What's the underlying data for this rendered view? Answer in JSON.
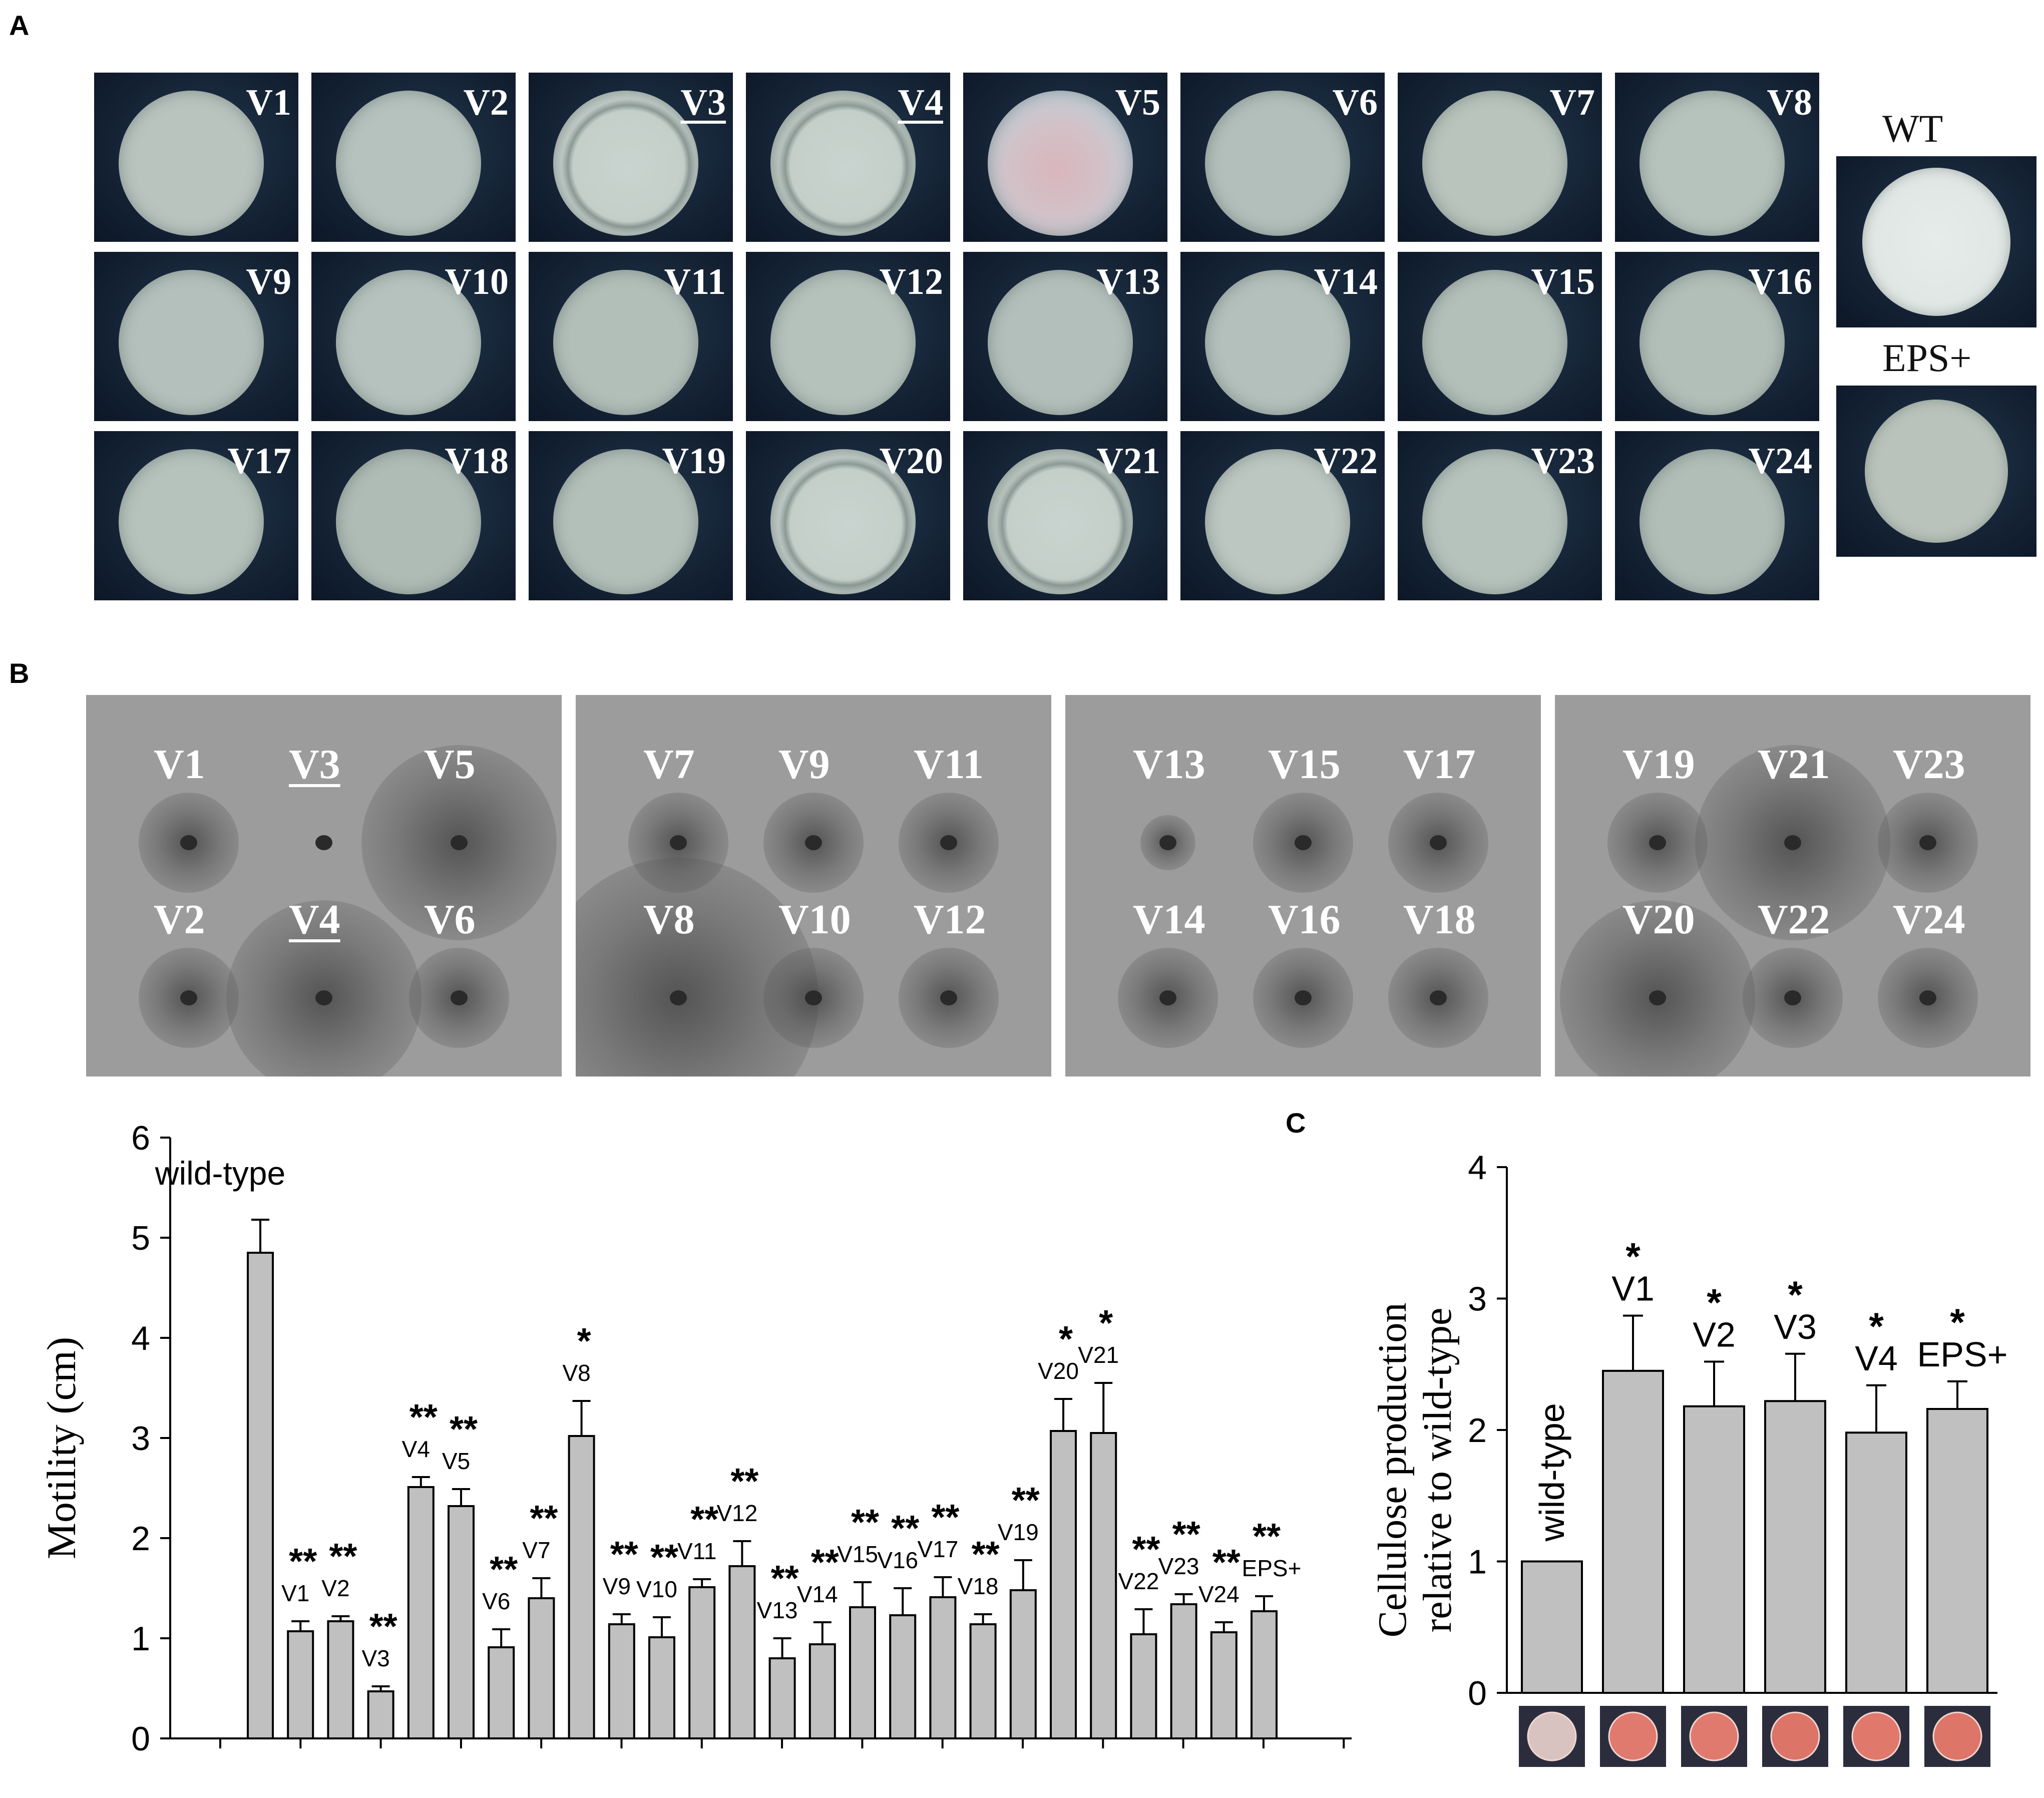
{
  "panel_letters": {
    "a": "A",
    "b": "B",
    "c": "C"
  },
  "panel_a": {
    "tiles": [
      {
        "label": "V1",
        "underline": false,
        "color": "#b9c4bf",
        "ring": "none"
      },
      {
        "label": "V2",
        "underline": false,
        "color": "#b5c2bd",
        "ring": "none"
      },
      {
        "label": "V3",
        "underline": true,
        "color": "#c3cec9",
        "ring": "wide"
      },
      {
        "label": "V4",
        "underline": true,
        "color": "#bdc8c2",
        "ring": "wide"
      },
      {
        "label": "V5",
        "underline": false,
        "color": "#d4c8cf",
        "ring": "pink"
      },
      {
        "label": "V6",
        "underline": false,
        "color": "#b3bfba",
        "ring": "none"
      },
      {
        "label": "V7",
        "underline": false,
        "color": "#b8c4bc",
        "ring": "none"
      },
      {
        "label": "V8",
        "underline": false,
        "color": "#b6c2bc",
        "ring": "none"
      },
      {
        "label": "V9",
        "underline": false,
        "color": "#b4c0bb",
        "ring": "none"
      },
      {
        "label": "V10",
        "underline": false,
        "color": "#b6c2bd",
        "ring": "none"
      },
      {
        "label": "V11",
        "underline": false,
        "color": "#b2beb8",
        "ring": "none"
      },
      {
        "label": "V12",
        "underline": false,
        "color": "#b5c1bb",
        "ring": "none"
      },
      {
        "label": "V13",
        "underline": false,
        "color": "#b3bfba",
        "ring": "none"
      },
      {
        "label": "V14",
        "underline": false,
        "color": "#b4c0bb",
        "ring": "none"
      },
      {
        "label": "V15",
        "underline": false,
        "color": "#b3bfb9",
        "ring": "none"
      },
      {
        "label": "V16",
        "underline": false,
        "color": "#b2beb8",
        "ring": "none"
      },
      {
        "label": "V17",
        "underline": false,
        "color": "#b6c2bc",
        "ring": "none"
      },
      {
        "label": "V18",
        "underline": false,
        "color": "#afbbb5",
        "ring": "none"
      },
      {
        "label": "V19",
        "underline": false,
        "color": "#b3bfb9",
        "ring": "none"
      },
      {
        "label": "V20",
        "underline": false,
        "color": "#c2cdc8",
        "ring": "wide"
      },
      {
        "label": "V21",
        "underline": false,
        "color": "#bcc7c1",
        "ring": "wide"
      },
      {
        "label": "V22",
        "underline": false,
        "color": "#bcc7c1",
        "ring": "none"
      },
      {
        "label": "V23",
        "underline": false,
        "color": "#b6c2bc",
        "ring": "none"
      },
      {
        "label": "V24",
        "underline": false,
        "color": "#b1bdb7",
        "ring": "none"
      }
    ],
    "side": [
      {
        "label": "WT",
        "color": "#dfe6e3"
      },
      {
        "label": "EPS+",
        "color": "#b9c3bb"
      }
    ]
  },
  "panel_b_plates": [
    {
      "spots": [
        {
          "label": "V1",
          "underline": false,
          "halo": "small"
        },
        {
          "label": "V3",
          "underline": true,
          "halo": "none"
        },
        {
          "label": "V5",
          "underline": false,
          "halo": "large"
        },
        {
          "label": "V2",
          "underline": false,
          "halo": "small"
        },
        {
          "label": "V4",
          "underline": true,
          "halo": "large"
        },
        {
          "label": "V6",
          "underline": false,
          "halo": "small"
        }
      ]
    },
    {
      "spots": [
        {
          "label": "V7",
          "underline": false,
          "halo": "small"
        },
        {
          "label": "V9",
          "underline": false,
          "halo": "small"
        },
        {
          "label": "V11",
          "underline": false,
          "halo": "small"
        },
        {
          "label": "V8",
          "underline": false,
          "halo": "huge"
        },
        {
          "label": "V10",
          "underline": false,
          "halo": "small"
        },
        {
          "label": "V12",
          "underline": false,
          "halo": "small"
        }
      ]
    },
    {
      "spots": [
        {
          "label": "V13",
          "underline": false,
          "halo": "tiny"
        },
        {
          "label": "V15",
          "underline": false,
          "halo": "small"
        },
        {
          "label": "V17",
          "underline": false,
          "halo": "small"
        },
        {
          "label": "V14",
          "underline": false,
          "halo": "small"
        },
        {
          "label": "V16",
          "underline": false,
          "halo": "small"
        },
        {
          "label": "V18",
          "underline": false,
          "halo": "small"
        }
      ]
    },
    {
      "spots": [
        {
          "label": "V19",
          "underline": false,
          "halo": "small"
        },
        {
          "label": "V21",
          "underline": false,
          "halo": "large"
        },
        {
          "label": "V23",
          "underline": false,
          "halo": "small"
        },
        {
          "label": "V20",
          "underline": false,
          "halo": "large"
        },
        {
          "label": "V22",
          "underline": false,
          "halo": "small"
        },
        {
          "label": "V24",
          "underline": false,
          "halo": "small"
        }
      ]
    }
  ],
  "chart_data": [
    {
      "type": "bar",
      "title": "",
      "xlabel": "",
      "ylabel": "Motility (cm)",
      "ylim": [
        0,
        6
      ],
      "yticks": [
        0,
        1,
        2,
        3,
        4,
        5,
        6
      ],
      "grid": false,
      "categories": [
        "wild-type",
        "V1",
        "V2",
        "V3",
        "V4",
        "V5",
        "V6",
        "V7",
        "V8",
        "V9",
        "V10",
        "V11",
        "V12",
        "V13",
        "V14",
        "V15",
        "V16",
        "V17",
        "V18",
        "V19",
        "V20",
        "V21",
        "V22",
        "V23",
        "V24",
        "EPS+"
      ],
      "values": [
        4.85,
        1.07,
        1.17,
        0.47,
        2.51,
        2.32,
        0.91,
        1.4,
        3.02,
        1.14,
        1.01,
        1.51,
        1.72,
        0.8,
        0.94,
        1.31,
        1.23,
        1.41,
        1.14,
        1.48,
        3.07,
        3.05,
        1.04,
        1.34,
        1.06,
        1.27
      ],
      "errors": [
        0.33,
        0.1,
        0.05,
        0.05,
        0.1,
        0.17,
        0.18,
        0.2,
        0.35,
        0.1,
        0.2,
        0.08,
        0.25,
        0.2,
        0.22,
        0.25,
        0.27,
        0.2,
        0.1,
        0.3,
        0.32,
        0.5,
        0.25,
        0.1,
        0.1,
        0.15
      ],
      "significance": [
        "",
        "**",
        "**",
        "**",
        "**",
        "**",
        "**",
        "**",
        "*",
        "**",
        "**",
        "**",
        "**",
        "**",
        "**",
        "**",
        "**",
        "**",
        "**",
        "**",
        "*",
        "*",
        "**",
        "**",
        "**",
        "**"
      ],
      "bar_color": "#c0c0c0"
    },
    {
      "type": "bar",
      "title": "",
      "xlabel": "",
      "ylabel": "Cellulose production relative to wild-type",
      "ylabel_lines": [
        "Cellulose production",
        "relative to wild-type"
      ],
      "ylim": [
        0,
        4
      ],
      "yticks": [
        0,
        1,
        2,
        3,
        4
      ],
      "grid": false,
      "categories": [
        "wild-type",
        "V1",
        "V2",
        "V3",
        "V4",
        "EPS+"
      ],
      "values": [
        1.0,
        2.45,
        2.18,
        2.22,
        1.98,
        2.16
      ],
      "errors": [
        0,
        0.42,
        0.34,
        0.36,
        0.36,
        0.21
      ],
      "significance": [
        "",
        "*",
        "*",
        "*",
        "*",
        "*"
      ],
      "bar_color": "#c0c0c0",
      "thumb_colors": [
        "#d9c3c0",
        "#e07a6e",
        "#e07a6e",
        "#dc7468",
        "#e0786c",
        "#dd7669"
      ]
    }
  ]
}
